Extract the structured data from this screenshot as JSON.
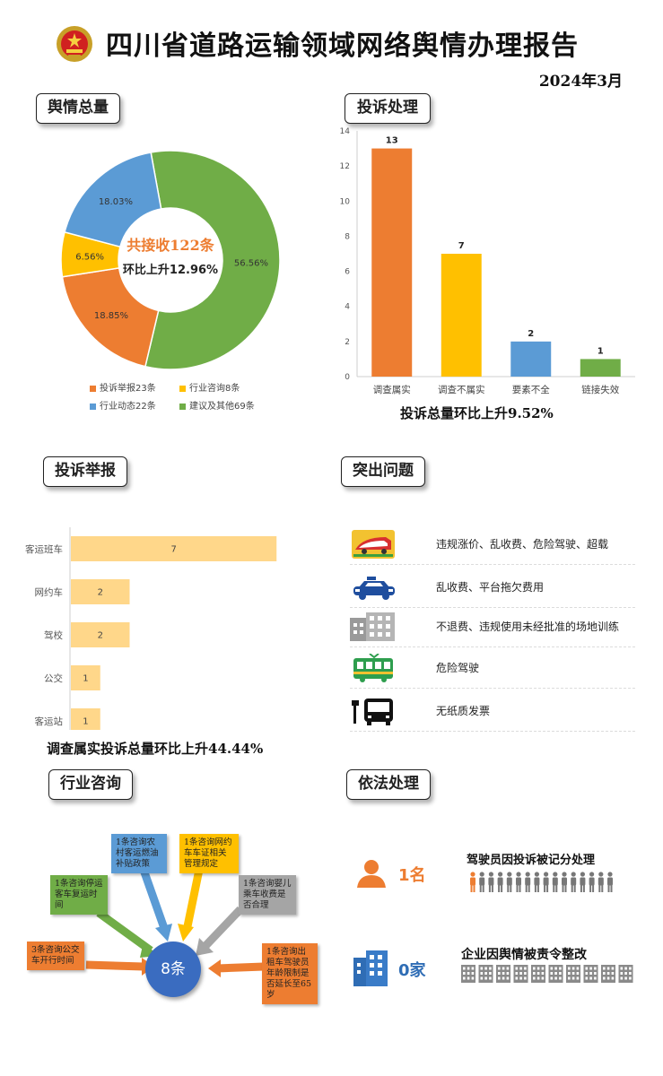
{
  "header": {
    "title": "四川省道路运输领域网络舆情办理报告",
    "date": "2024年3月"
  },
  "sections": {
    "total": "舆情总量",
    "complaint_handling": "投诉处理",
    "complaint_report": "投诉举报",
    "prominent": "突出问题",
    "consultation": "行业咨询",
    "legal": "依法处理"
  },
  "chart_data": [
    {
      "type": "pie",
      "center_text": "共接收122条",
      "center_subtext": "环比上升12.96%",
      "slices": [
        {
          "label": "投诉举报23条",
          "value": 18.85,
          "pct_label": "18.85%",
          "color": "#ED7D31"
        },
        {
          "label": "行业咨询8条",
          "value": 6.56,
          "pct_label": "6.56%",
          "color": "#FFC000"
        },
        {
          "label": "行业动态22条",
          "value": 18.03,
          "pct_label": "18.03%",
          "color": "#5B9BD5"
        },
        {
          "label": "建议及其他69条",
          "value": 56.56,
          "pct_label": "56.56%",
          "color": "#70AD47"
        }
      ]
    },
    {
      "type": "bar",
      "categories": [
        "调查属实",
        "调查不属实",
        "要素不全",
        "链接失效"
      ],
      "values": [
        13,
        7,
        2,
        1
      ],
      "colors": [
        "#ED7D31",
        "#FFC000",
        "#5B9BD5",
        "#70AD47"
      ],
      "ylim": [
        0,
        14
      ],
      "yticks": [
        "0",
        "2",
        "4",
        "6",
        "8",
        "10",
        "12",
        "14"
      ],
      "note": "投诉总量环比上升9.52%"
    },
    {
      "type": "bar",
      "orientation": "horizontal",
      "categories": [
        "客运班车",
        "网约车",
        "驾校",
        "公交",
        "客运站"
      ],
      "values": [
        7,
        2,
        2,
        1,
        1
      ],
      "color": "#FFD78A",
      "note": "调查属实投诉总量环比上升44.44%"
    }
  ],
  "issues": [
    {
      "icon": "coach-bus-icon",
      "text": "违规涨价、乱收费、危险驾驶、超载"
    },
    {
      "icon": "taxi-icon",
      "text": "乱收费、平台拖欠费用"
    },
    {
      "icon": "building-icon",
      "text": "不退费、违规使用未经批准的场地训练"
    },
    {
      "icon": "tram-icon",
      "text": "危险驾驶"
    },
    {
      "icon": "bus-station-icon",
      "text": "无纸质发票"
    }
  ],
  "consultation": {
    "center": "8条",
    "items": [
      {
        "text": "3条咨询公交车开行时间",
        "color": "#ED7D31"
      },
      {
        "text": "1条咨询停运客车复运时间",
        "color": "#70AD47"
      },
      {
        "text": "1条咨询农村客运燃油补贴政策",
        "color": "#5B9BD5"
      },
      {
        "text": "1条咨询网约车车证相关管理规定",
        "color": "#FFC000"
      },
      {
        "text": "1条咨询婴儿乘车收费是否合理",
        "color": "#A5A5A5"
      },
      {
        "text": "1条咨询出租车驾驶员年龄限制是否延长至65岁",
        "color": "#ED7D31"
      }
    ]
  },
  "legal": {
    "driver": {
      "count": "1名",
      "label": "驾驶员因投诉被记分处理",
      "color": "#ED7D31"
    },
    "enterprise": {
      "count": "0家",
      "label": "企业因舆情被责令整改",
      "color": "#2F6DB5"
    }
  }
}
